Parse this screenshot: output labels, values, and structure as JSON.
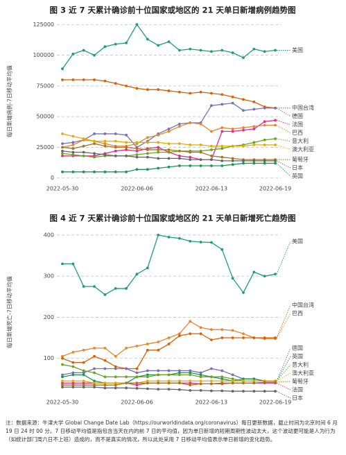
{
  "chart_data": [
    {
      "type": "line",
      "title": "图 3  近 7 天累计确诊前十位国家或地区的 21 天单日新增病例趋势图",
      "y_label": "每日新增病例-7日移动平均值",
      "x": [
        "2022-05-30",
        "2022-05-31",
        "2022-06-01",
        "2022-06-02",
        "2022-06-03",
        "2022-06-04",
        "2022-06-05",
        "2022-06-06",
        "2022-06-07",
        "2022-06-08",
        "2022-06-09",
        "2022-06-10",
        "2022-06-11",
        "2022-06-12",
        "2022-06-13",
        "2022-06-14",
        "2022-06-15",
        "2022-06-16",
        "2022-06-17",
        "2022-06-18",
        "2022-06-19"
      ],
      "xticks": [
        "2022-05-30",
        "2022-06-06",
        "2022-06-13",
        "2022-06-19"
      ],
      "ylim": [
        -3000,
        128000
      ],
      "yticks": [
        0,
        25000,
        50000,
        75000,
        100000,
        125000
      ],
      "grid": true,
      "series": [
        {
          "name": "美国",
          "color": "#1b9e77",
          "values": [
            89000,
            101000,
            104000,
            100000,
            107000,
            109000,
            110000,
            125000,
            113000,
            108000,
            111000,
            104000,
            105000,
            104000,
            103000,
            104000,
            102000,
            98000,
            105000,
            103000,
            104000
          ]
        },
        {
          "name": "中国台湾",
          "color": "#d95f02",
          "values": [
            80000,
            80000,
            80000,
            80000,
            79000,
            77000,
            75000,
            73000,
            72000,
            72000,
            71000,
            70000,
            69000,
            70000,
            69000,
            68000,
            66000,
            64000,
            62000,
            58000,
            57000
          ]
        },
        {
          "name": "德国",
          "color": "#7570b3",
          "values": [
            28000,
            29000,
            31000,
            36000,
            36000,
            36000,
            35000,
            25000,
            30000,
            36000,
            40000,
            44000,
            45000,
            45000,
            59000,
            60000,
            61000,
            55000,
            56000,
            57000,
            57000
          ]
        },
        {
          "name": "法国",
          "color": "#e7298a",
          "values": [
            18000,
            18000,
            18000,
            18000,
            20000,
            22000,
            23000,
            22000,
            24000,
            25000,
            21000,
            18000,
            17000,
            15000,
            15000,
            38000,
            38000,
            39000,
            40000,
            46000,
            47000
          ]
        },
        {
          "name": "巴西",
          "color": "#e6862a",
          "values": [
            25000,
            27000,
            31000,
            30000,
            28000,
            26000,
            26000,
            28000,
            33000,
            35000,
            38000,
            42000,
            45000,
            44000,
            38000,
            41000,
            40000,
            41000,
            42000,
            43000,
            43000
          ]
        },
        {
          "name": "意大利",
          "color": "#66a61e",
          "values": [
            20000,
            19000,
            18000,
            17000,
            18000,
            18000,
            18000,
            19000,
            20000,
            21000,
            21000,
            22000,
            22000,
            22000,
            23000,
            24000,
            26000,
            27000,
            29000,
            31000,
            32000
          ]
        },
        {
          "name": "澳大利亚",
          "color": "#e6ab02",
          "values": [
            36000,
            34000,
            32000,
            30000,
            30000,
            30000,
            29000,
            29000,
            29000,
            29000,
            28000,
            28000,
            27000,
            27000,
            26000,
            26000,
            26000,
            26000,
            27000,
            27000,
            27000
          ]
        },
        {
          "name": "葡萄牙",
          "color": "#a6761d",
          "values": [
            25000,
            24000,
            26000,
            28000,
            26000,
            25000,
            25000,
            24000,
            23000,
            23000,
            23000,
            22000,
            21000,
            21000,
            18000,
            17000,
            16000,
            15000,
            15000,
            15000,
            15000
          ]
        },
        {
          "name": "日本",
          "color": "#666666",
          "values": [
            22000,
            21000,
            21000,
            20000,
            19000,
            18000,
            18000,
            17000,
            17000,
            16000,
            16000,
            16000,
            15000,
            15000,
            15000,
            14000,
            14000,
            14000,
            14000,
            14000,
            14000
          ]
        },
        {
          "name": "英国",
          "color": "#1a9850",
          "values": [
            5000,
            5000,
            5000,
            5000,
            5000,
            5000,
            5000,
            7000,
            7000,
            8000,
            9000,
            10000,
            10000,
            10000,
            10000,
            10000,
            11000,
            12000,
            12000,
            12000,
            12000
          ]
        }
      ]
    },
    {
      "type": "line",
      "title": "图 4  近 7 天累计确诊前十位国家或地区的 21 天单日新增死亡趋势图",
      "y_label": "每日新增死亡-7日移动平均值",
      "x": [
        "2022-05-30",
        "2022-05-31",
        "2022-06-01",
        "2022-06-02",
        "2022-06-03",
        "2022-06-04",
        "2022-06-05",
        "2022-06-06",
        "2022-06-07",
        "2022-06-08",
        "2022-06-09",
        "2022-06-10",
        "2022-06-11",
        "2022-06-12",
        "2022-06-13",
        "2022-06-14",
        "2022-06-15",
        "2022-06-16",
        "2022-06-17",
        "2022-06-18",
        "2022-06-19"
      ],
      "xticks": [
        "2022-05-30",
        "2022-06-06",
        "2022-06-13",
        "2022-06-19"
      ],
      "ylim": [
        10,
        415
      ],
      "yticks": [
        100,
        200,
        300,
        400
      ],
      "grid": true,
      "series": [
        {
          "name": "美国",
          "color": "#1b9e77",
          "values": [
            330,
            330,
            275,
            275,
            255,
            270,
            270,
            305,
            320,
            400,
            395,
            392,
            385,
            383,
            382,
            365,
            295,
            260,
            310,
            300,
            305
          ]
        },
        {
          "name": "巴西",
          "color": "#e6862a",
          "values": [
            105,
            115,
            120,
            125,
            125,
            105,
            125,
            130,
            135,
            140,
            150,
            160,
            190,
            175,
            170,
            170,
            168,
            160,
            150,
            148,
            148
          ]
        },
        {
          "name": "中国台湾",
          "color": "#d95f02",
          "values": [
            100,
            90,
            90,
            105,
            95,
            80,
            75,
            75,
            120,
            120,
            135,
            155,
            160,
            160,
            145,
            150,
            150,
            150,
            150,
            150,
            150
          ]
        },
        {
          "name": "德国",
          "color": "#7570b3",
          "values": [
            60,
            65,
            65,
            75,
            75,
            75,
            75,
            65,
            70,
            70,
            70,
            70,
            70,
            65,
            75,
            70,
            60,
            50,
            50,
            45,
            45
          ]
        },
        {
          "name": "法国",
          "color": "#e7298a",
          "values": [
            40,
            40,
            40,
            40,
            40,
            40,
            40,
            35,
            40,
            40,
            40,
            40,
            40,
            38,
            38,
            38,
            40,
            40,
            40,
            40,
            40
          ]
        },
        {
          "name": "英国",
          "color": "#1a9850",
          "values": [
            55,
            60,
            60,
            45,
            40,
            40,
            40,
            55,
            60,
            60,
            60,
            65,
            65,
            60,
            55,
            50,
            45,
            50,
            50,
            45,
            45
          ]
        },
        {
          "name": "意大利",
          "color": "#66a61e",
          "values": [
            85,
            80,
            70,
            65,
            55,
            55,
            55,
            55,
            55,
            60,
            60,
            60,
            60,
            55,
            55,
            55,
            50,
            45,
            45,
            45,
            45
          ]
        },
        {
          "name": "澳大利亚",
          "color": "#e6ab02",
          "values": [
            45,
            45,
            45,
            40,
            40,
            40,
            40,
            40,
            45,
            45,
            45,
            45,
            45,
            45,
            45,
            45,
            45,
            45,
            45,
            45,
            45
          ]
        },
        {
          "name": "葡萄牙",
          "color": "#a6761d",
          "values": [
            35,
            35,
            35,
            35,
            35,
            35,
            40,
            40,
            40,
            40,
            40,
            40,
            35,
            38,
            38,
            40,
            40,
            40,
            40,
            42,
            42
          ]
        },
        {
          "name": "日本",
          "color": "#666666",
          "values": [
            30,
            30,
            30,
            30,
            28,
            28,
            28,
            27,
            26,
            25,
            25,
            24,
            22,
            22,
            21,
            21,
            20,
            20,
            20,
            20,
            20
          ]
        }
      ]
    }
  ],
  "note": "注：数据来源：牛津大学 Global Change Date Lab（https://ourworldindata.org/coronavirus）每日更新数据，截止时间为北京时间 6 月 19 日 24 时 00 分。7 日移动平均值是指包含当天在内的前 7 日的平均值，因为单日新增的短期周期性波动太大，这个波动更可能是人为行为（如统计部门周六日不上班）造成的，而不是真实的情况，所以此处采用 7 日移动平均值表示单日新增的变化趋势。"
}
